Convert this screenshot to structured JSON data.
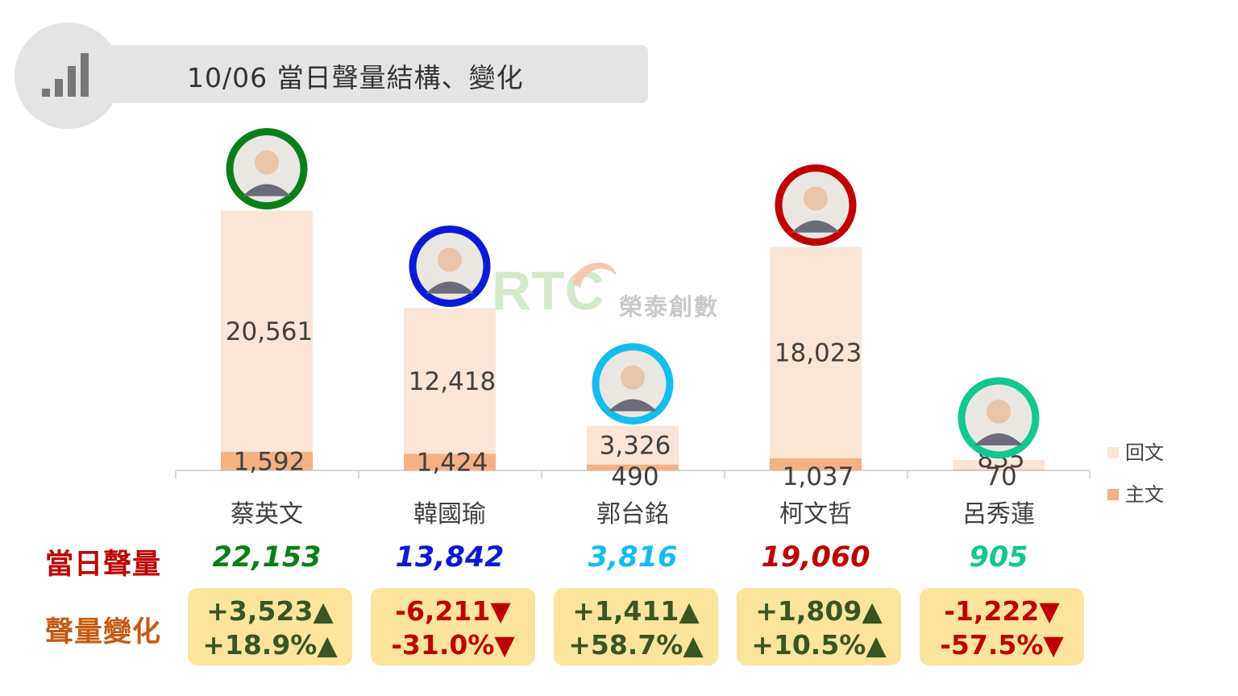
{
  "header": {
    "title": "10/06 當日聲量結構、變化",
    "icon": "bar-chart-icon"
  },
  "watermark": {
    "logo_text": "RTC",
    "company_text": "榮泰創數"
  },
  "chart_data": {
    "type": "bar",
    "stacked": true,
    "categories": [
      "蔡英文",
      "韓國瑜",
      "郭台銘",
      "柯文哲",
      "呂秀蓮"
    ],
    "series": [
      {
        "name": "主文",
        "values": [
          1592,
          1424,
          490,
          1037,
          70
        ],
        "color": "#f4b183"
      },
      {
        "name": "回文",
        "values": [
          20561,
          12418,
          3326,
          18023,
          835
        ],
        "color": "#fbe5d6"
      }
    ],
    "data_labels": {
      "主文": [
        "1,592",
        "1,424",
        "490",
        "1,037",
        "70"
      ],
      "回文": [
        "20,561",
        "12,418",
        "3,326",
        "18,023",
        "835"
      ]
    },
    "legend": {
      "position": "right",
      "order": [
        "回文",
        "主文"
      ]
    },
    "ylim": [
      0,
      27000
    ],
    "grid": false
  },
  "candidates": [
    {
      "name": "蔡英文",
      "ring_color": "#0b7f17",
      "avatar": "portrait-photo"
    },
    {
      "name": "韓國瑜",
      "ring_color": "#0a1ad6",
      "avatar": "portrait-photo"
    },
    {
      "name": "郭台銘",
      "ring_color": "#14bdf0",
      "avatar": "portrait-photo"
    },
    {
      "name": "柯文哲",
      "ring_color": "#c00000",
      "avatar": "portrait-photo"
    },
    {
      "name": "呂秀蓮",
      "ring_color": "#12c790",
      "avatar": "portrait-photo"
    }
  ],
  "summary": {
    "daily_label": "當日聲量",
    "daily_label_color": "#c00000",
    "change_label": "聲量變化",
    "change_label_color": "#c55a11",
    "up_color": "#375623",
    "down_color": "#c00000",
    "totals": [
      {
        "value": "22,153",
        "color": "#0b7f17"
      },
      {
        "value": "13,842",
        "color": "#0a1ad6"
      },
      {
        "value": "3,816",
        "color": "#14bdf0"
      },
      {
        "value": "19,060",
        "color": "#c00000"
      },
      {
        "value": "905",
        "color": "#12c790"
      }
    ],
    "changes": [
      {
        "abs": "+3,523▲",
        "pct": "+18.9%▲",
        "dir": "up"
      },
      {
        "abs": "-6,211▼",
        "pct": "-31.0%▼",
        "dir": "down"
      },
      {
        "abs": "+1,411▲",
        "pct": "+58.7%▲",
        "dir": "up"
      },
      {
        "abs": "+1,809▲",
        "pct": "+10.5%▲",
        "dir": "up"
      },
      {
        "abs": "-1,222▼",
        "pct": "-57.5%▼",
        "dir": "down"
      }
    ]
  }
}
